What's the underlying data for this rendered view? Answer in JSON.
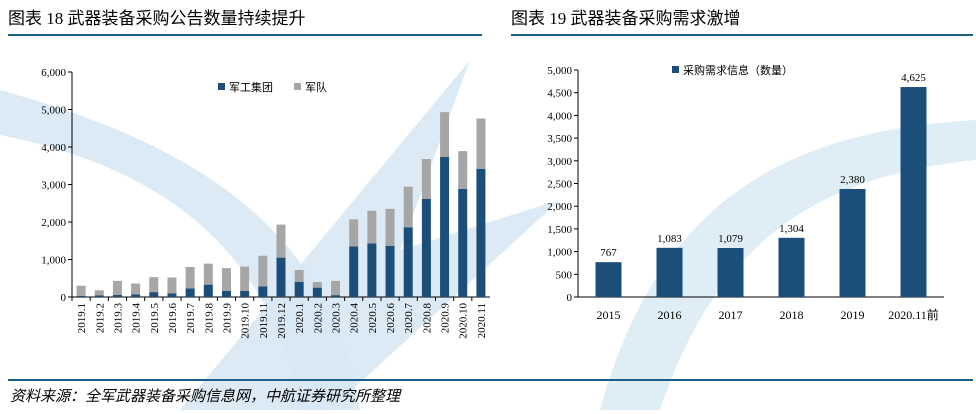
{
  "titles": {
    "left": "图表 18 武器装备采购公告数量持续提升",
    "right": "图表 19 武器装备采购需求激增"
  },
  "source": "资料来源：全军武器装备采购信息网，中航证券研究所整理",
  "colors": {
    "navy": "#1b4f7a",
    "gray": "#a6a6a6",
    "rule": "#1a5f8a",
    "watermark": "#cfe4f2"
  },
  "chart_data": [
    {
      "type": "bar",
      "stacked": true,
      "title": "图表 18 武器装备采购公告数量持续提升",
      "categories": [
        "2019.1",
        "2019.2",
        "2019.3",
        "2019.4",
        "2019.5",
        "2019.6",
        "2019.7",
        "2019.8",
        "2019.9",
        "2019.10",
        "2019.11",
        "2019.12",
        "2020.1",
        "2020.2",
        "2020.3",
        "2020.4",
        "2020.5",
        "2020.6",
        "2020.7",
        "2020.8",
        "2020.9",
        "2020.10",
        "2020.11"
      ],
      "series": [
        {
          "name": "军工集团",
          "color": "#1b4f7a",
          "values": [
            30,
            40,
            60,
            70,
            130,
            100,
            230,
            330,
            160,
            160,
            280,
            1050,
            400,
            250,
            50,
            1350,
            1430,
            1360,
            1860,
            2620,
            3740,
            2880,
            3420
          ]
        },
        {
          "name": "军队",
          "color": "#a6a6a6",
          "values": [
            270,
            140,
            370,
            290,
            400,
            420,
            570,
            560,
            610,
            650,
            820,
            880,
            320,
            150,
            380,
            720,
            870,
            990,
            1080,
            1060,
            1190,
            1010,
            1340
          ]
        }
      ],
      "yticks": [
        "0",
        "1,000",
        "2,000",
        "3,000",
        "4,000",
        "5,000",
        "6,000"
      ],
      "ylim": [
        0,
        6000
      ],
      "legend": "top-center"
    },
    {
      "type": "bar",
      "title": "图表 19 武器装备采购需求激增",
      "categories": [
        "2015",
        "2016",
        "2017",
        "2018",
        "2019",
        "2020.11前"
      ],
      "series": [
        {
          "name": "采购需求信息（数量）",
          "color": "#1b4f7a",
          "values": [
            767,
            1083,
            1079,
            1304,
            2380,
            4625
          ]
        }
      ],
      "value_labels": [
        "767",
        "1,083",
        "1,079",
        "1,304",
        "2,380",
        "4,625"
      ],
      "yticks": [
        "0",
        "500",
        "1,000",
        "1,500",
        "2,000",
        "2,500",
        "3,000",
        "3,500",
        "4,000",
        "4,500",
        "5,000"
      ],
      "ylim": [
        0,
        5000
      ],
      "legend": "top-center"
    }
  ]
}
